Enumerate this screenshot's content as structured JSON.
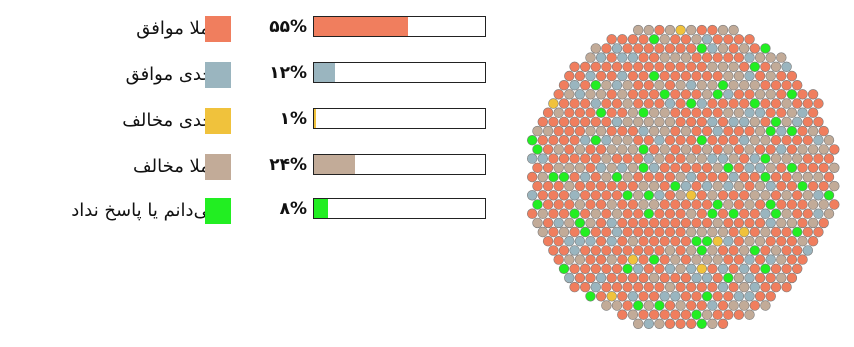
{
  "chart_data": {
    "type": "bar",
    "categories": [
      "کاملا موافق",
      "تاحدی موافق",
      "تاحدی مخالف",
      "کاملا مخالف",
      "نمی‌دانم یا پاسخ نداد"
    ],
    "values": [
      55,
      12,
      1,
      24,
      8
    ],
    "value_labels": [
      "۵۵%",
      "۱۲%",
      "۱%",
      "۲۴%",
      "۸%"
    ],
    "colors": [
      "#f07e5e",
      "#9ab5bf",
      "#f0c23c",
      "#c2ab98",
      "#22ee22"
    ],
    "xlim": [
      0,
      100
    ],
    "legend_position": "left",
    "grid": false,
    "companion": "dot-circle"
  }
}
